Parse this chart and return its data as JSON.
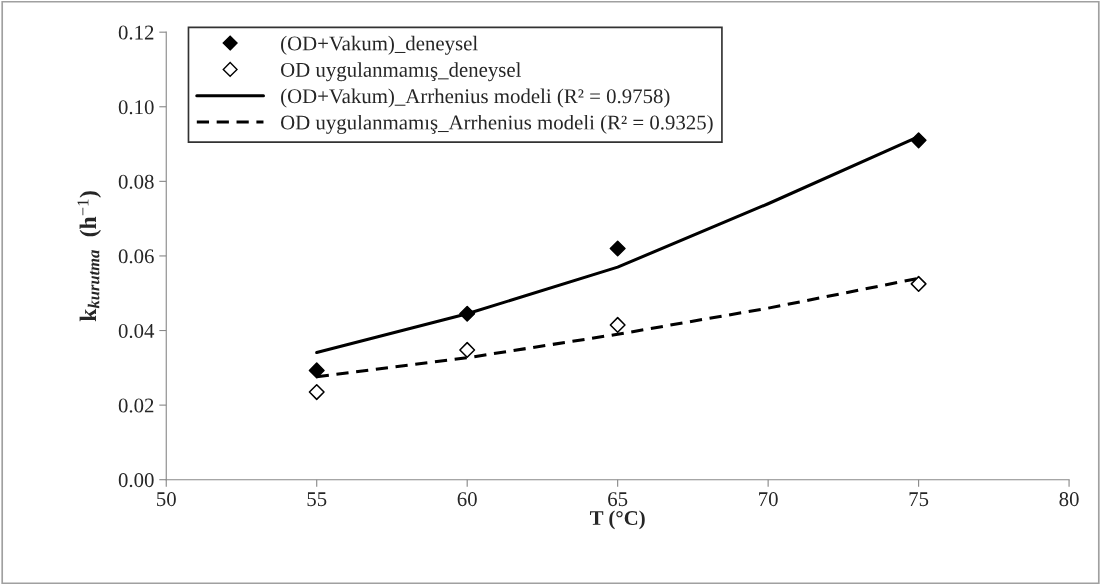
{
  "chart_data": {
    "type": "scatter",
    "xlabel": "T (°C)",
    "ylabel": "k$_{kurutma}$  (h$^{−1}$)",
    "x": [
      55,
      60,
      65,
      75
    ],
    "series": [
      {
        "name": "(OD+Vakum)_deneysel",
        "color": "#000000",
        "marker": "diamond",
        "values": [
          0.0293,
          0.0445,
          0.062,
          0.091
        ]
      },
      {
        "name": "OD uygulanmamış_deneysel",
        "color": "#ffffff",
        "marker": "diamond",
        "values": [
          0.0235,
          0.0348,
          0.0415,
          0.0525
        ]
      },
      {
        "name": "(OD+Vakum)_Arrhenius modeli (R² = 0.9758)",
        "type": "line",
        "color": "#000000",
        "line_style": "solid",
        "x": [
          55,
          60,
          65,
          70,
          75
        ],
        "values": [
          0.0341,
          0.0445,
          0.057,
          0.074,
          0.092
        ]
      },
      {
        "name": "OD uygulanmamış_Arrhenius modeli (R² = 0.9325)",
        "type": "line",
        "color": "#000000",
        "line_style": "dashed",
        "x": [
          55,
          60,
          65,
          70,
          75
        ],
        "values": [
          0.0276,
          0.0327,
          0.039,
          0.046,
          0.054
        ]
      }
    ],
    "xlim": [
      50,
      80
    ],
    "xticks": [
      50,
      55,
      60,
      65,
      70,
      75,
      80
    ],
    "ylim": [
      0,
      0.12
    ],
    "yticks": [
      {
        "value": 0,
        "label": "0.00"
      },
      {
        "value": 0.02,
        "label": "0.02"
      },
      {
        "value": 0.04,
        "label": "0.04"
      },
      {
        "value": 0.06,
        "label": "0.06"
      },
      {
        "value": 0.08,
        "label": "0.08"
      },
      {
        "value": 0.1,
        "label": "0.10"
      },
      {
        "value": 0.12,
        "label": "0.12"
      }
    ],
    "grid": false,
    "legend": "top left"
  }
}
